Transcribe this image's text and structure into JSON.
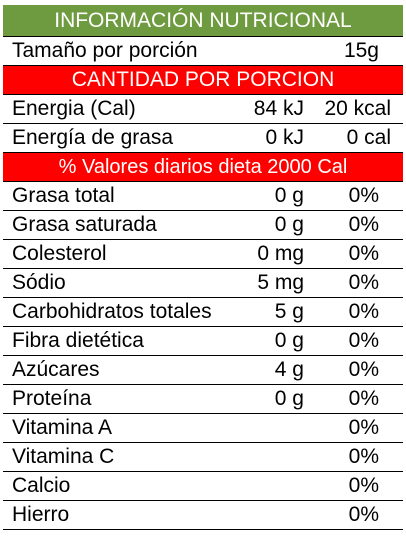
{
  "title": "INFORMACIÓN NUTRICIONAL",
  "serving": {
    "label": "Tamaño por porción",
    "value": "15g"
  },
  "section_amount": "CANTIDAD POR PORCION",
  "energy_rows": [
    {
      "name": "Energia (Cal)",
      "kj": "84 kJ",
      "kcal": "20 kcal"
    },
    {
      "name": "Energía de grasa",
      "kj": "0 kJ",
      "kcal": "0 cal"
    }
  ],
  "section_daily": "% Valores diarios dieta 2000 Cal",
  "nutrients": [
    {
      "name": "Grasa total",
      "amount": "0 g",
      "pct": "0%"
    },
    {
      "name": "Grasa saturada",
      "amount": "0 g",
      "pct": "0%"
    },
    {
      "name": "Colesterol",
      "amount": "0 mg",
      "pct": "0%"
    },
    {
      "name": "Sódio",
      "amount": "5 mg",
      "pct": "0%"
    },
    {
      "name": "Carbohidratos totales",
      "amount": "5 g",
      "pct": "0%"
    },
    {
      "name": "Fibra dietética",
      "amount": "0 g",
      "pct": "0%"
    },
    {
      "name": "Azúcares",
      "amount": "4 g",
      "pct": "0%"
    },
    {
      "name": "Proteína",
      "amount": "0 g",
      "pct": "0%"
    },
    {
      "name": "Vitamina A",
      "amount": "",
      "pct": "0%"
    },
    {
      "name": "Vitamina C",
      "amount": "",
      "pct": "0%"
    },
    {
      "name": "Calcio",
      "amount": "",
      "pct": "0%"
    },
    {
      "name": "Hierro",
      "amount": "",
      "pct": "0%"
    }
  ],
  "colors": {
    "title_bg": "#6e9b3f",
    "band_bg": "#ff0000",
    "band_text": "#ffffff"
  }
}
